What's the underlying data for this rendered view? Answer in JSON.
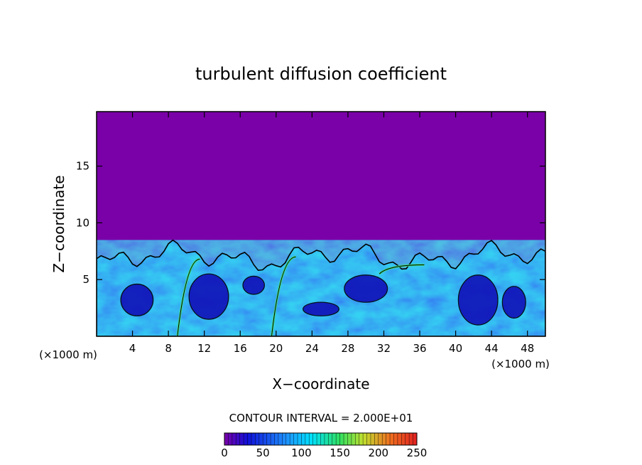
{
  "chart_data": {
    "type": "heatmap",
    "title": "turbulent diffusion coefficient",
    "xlabel": "X−coordinate",
    "ylabel": "Z−coordinate",
    "x_unit_left": "(×1000 m)",
    "x_unit_right": "(×1000 m)",
    "xlim": [
      0,
      50
    ],
    "ylim": [
      0,
      19.8
    ],
    "x_ticks": [
      4,
      8,
      12,
      16,
      20,
      24,
      28,
      32,
      36,
      40,
      44,
      48
    ],
    "y_ticks": [
      5,
      10,
      15
    ],
    "contour_interval_label": "CONTOUR INTERVAL = 2.000E+01",
    "contour_interval": 20,
    "colorbar": {
      "ticks": [
        0,
        50,
        100,
        150,
        200,
        250
      ],
      "range": [
        0,
        250
      ],
      "colors": [
        "#7a00a8",
        "#1010d8",
        "#1e90ff",
        "#00e0ff",
        "#30e060",
        "#c0e030",
        "#f07020",
        "#e02020"
      ]
    },
    "background_value": 0,
    "background_color": "#7a00a8",
    "turbulent_layer_top_approx": 7
  }
}
